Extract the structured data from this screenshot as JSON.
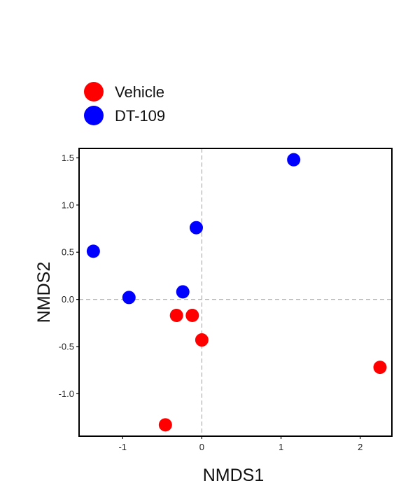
{
  "chart_data": {
    "type": "scatter",
    "title": "",
    "xlabel": "NMDS1",
    "ylabel": "NMDS2",
    "xlim": [
      -1.55,
      2.4
    ],
    "ylim": [
      -1.45,
      1.6
    ],
    "x_ticks": [
      -1,
      0,
      1,
      2
    ],
    "x_tick_labels": [
      "-1",
      "0",
      "1",
      "2"
    ],
    "y_ticks": [
      1.5,
      1.0,
      0.5,
      0.0,
      -0.5,
      -1.0
    ],
    "y_tick_labels": [
      "1.5",
      "1.0",
      "0.5",
      "0.0",
      "-0.5",
      "-1.0"
    ],
    "reference_lines": {
      "x": 0,
      "y": 0
    },
    "grid": false,
    "legend_position": "top-left, above plot",
    "series": [
      {
        "name": "Vehicle",
        "color": "#ff0000",
        "points": [
          {
            "x": -0.32,
            "y": -0.17
          },
          {
            "x": -0.12,
            "y": -0.17
          },
          {
            "x": 0.0,
            "y": -0.43
          },
          {
            "x": 2.25,
            "y": -0.72
          },
          {
            "x": -0.46,
            "y": -1.33
          }
        ]
      },
      {
        "name": "DT-109",
        "color": "#0000ff",
        "points": [
          {
            "x": 1.16,
            "y": 1.48
          },
          {
            "x": -0.07,
            "y": 0.76
          },
          {
            "x": -1.37,
            "y": 0.51
          },
          {
            "x": -0.92,
            "y": 0.02
          },
          {
            "x": -0.24,
            "y": 0.08
          }
        ]
      }
    ]
  }
}
